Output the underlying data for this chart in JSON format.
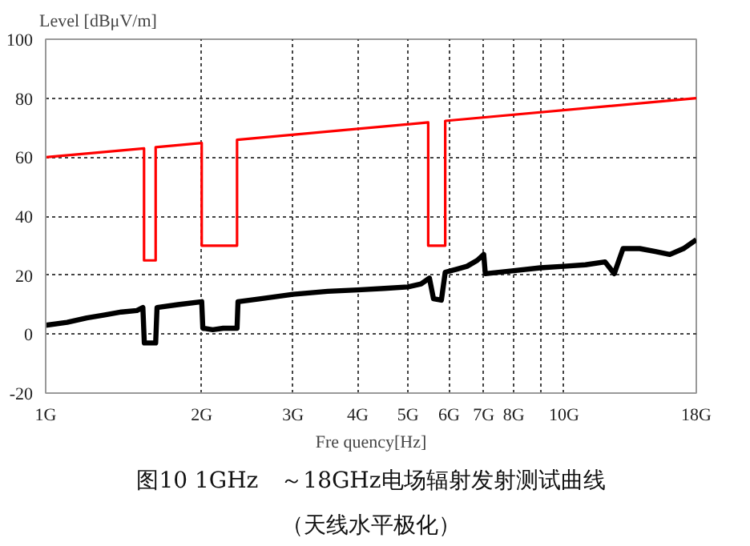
{
  "chart_data": {
    "type": "line",
    "ylabel": "Level [dBμV/m]",
    "xlabel": "Fre quency[Hz]",
    "log": "x",
    "grid": true,
    "xlim": [
      1,
      18
    ],
    "xticks": [
      {
        "value": 1,
        "label": "1G"
      },
      {
        "value": 2,
        "label": "2G"
      },
      {
        "value": 3,
        "label": "3G"
      },
      {
        "value": 4,
        "label": "4G"
      },
      {
        "value": 5,
        "label": "5G"
      },
      {
        "value": 6,
        "label": "6G"
      },
      {
        "value": 7,
        "label": "7G"
      },
      {
        "value": 8,
        "label": "8G"
      },
      {
        "value": 9,
        "label": null
      },
      {
        "value": 10,
        "label": "10G"
      },
      {
        "value": 18,
        "label": "18G"
      }
    ],
    "ylim": [
      -20,
      100
    ],
    "yticks": [
      -20,
      0,
      20,
      40,
      60,
      80,
      100
    ],
    "series": [
      {
        "color": "#ff0000",
        "x": [
          1,
          1.548,
          1.548,
          1.63,
          1.63,
          2.0,
          2.0,
          2.34,
          2.34,
          5.47,
          5.47,
          5.9,
          5.9,
          18
        ],
        "values": [
          60,
          63,
          25,
          25,
          63.4,
          64.8,
          30,
          30,
          65.9,
          71.8,
          30,
          30,
          72.3,
          80
        ]
      },
      {
        "color": "#000000",
        "x": [
          1,
          1.1,
          1.2,
          1.3,
          1.4,
          1.5,
          1.54,
          1.55,
          1.6,
          1.63,
          1.64,
          1.8,
          2.0,
          2.01,
          2.1,
          2.2,
          2.34,
          2.35,
          2.6,
          3.0,
          3.5,
          4.0,
          4.5,
          5.0,
          5.3,
          5.5,
          5.6,
          5.8,
          5.9,
          6.2,
          6.5,
          6.8,
          7.0,
          7.05,
          8.0,
          9.0,
          10.0,
          11.0,
          12.0,
          12.5,
          13.0,
          14.0,
          15.0,
          16.0,
          17.0,
          18.0
        ],
        "values": [
          3,
          4,
          5.5,
          6.5,
          7.5,
          8,
          9,
          -3,
          -3,
          -3,
          9,
          10,
          11,
          2,
          1.5,
          2,
          2,
          11,
          12,
          13.5,
          14.5,
          15,
          15.5,
          16,
          17,
          19,
          12,
          11.5,
          21,
          22,
          23,
          25,
          27,
          20.5,
          21.5,
          22.5,
          23,
          23.5,
          24.5,
          20.5,
          29,
          29,
          28,
          27,
          29,
          32
        ]
      }
    ],
    "annotations": [
      "图10 1GHz　～18GHz电场辐射发射测试曲线",
      "（天线水平极化）"
    ]
  }
}
